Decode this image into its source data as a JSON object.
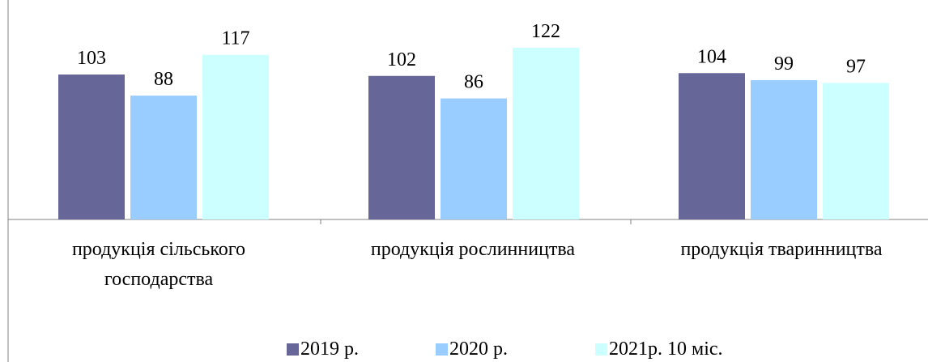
{
  "chart_data": {
    "type": "bar",
    "categories": [
      "продукція сільського господарства",
      "продукція рослинництва",
      "продукція тваринництва"
    ],
    "category_label_lines": [
      [
        "продукція сільського",
        "господарства"
      ],
      [
        "продукція рослинництва"
      ],
      [
        "продукція тваринництва"
      ]
    ],
    "series": [
      {
        "name": "2019 р.",
        "color": "#666699",
        "values": [
          103,
          102,
          104
        ]
      },
      {
        "name": "2020 р.",
        "color": "#99ccff",
        "values": [
          88,
          86,
          99
        ]
      },
      {
        "name": "2021р. 10 міс.",
        "color": "#ccffff",
        "values": [
          117,
          122,
          97
        ]
      }
    ],
    "ylim": [
      0,
      122
    ],
    "grid": false,
    "legend": "bottom"
  }
}
